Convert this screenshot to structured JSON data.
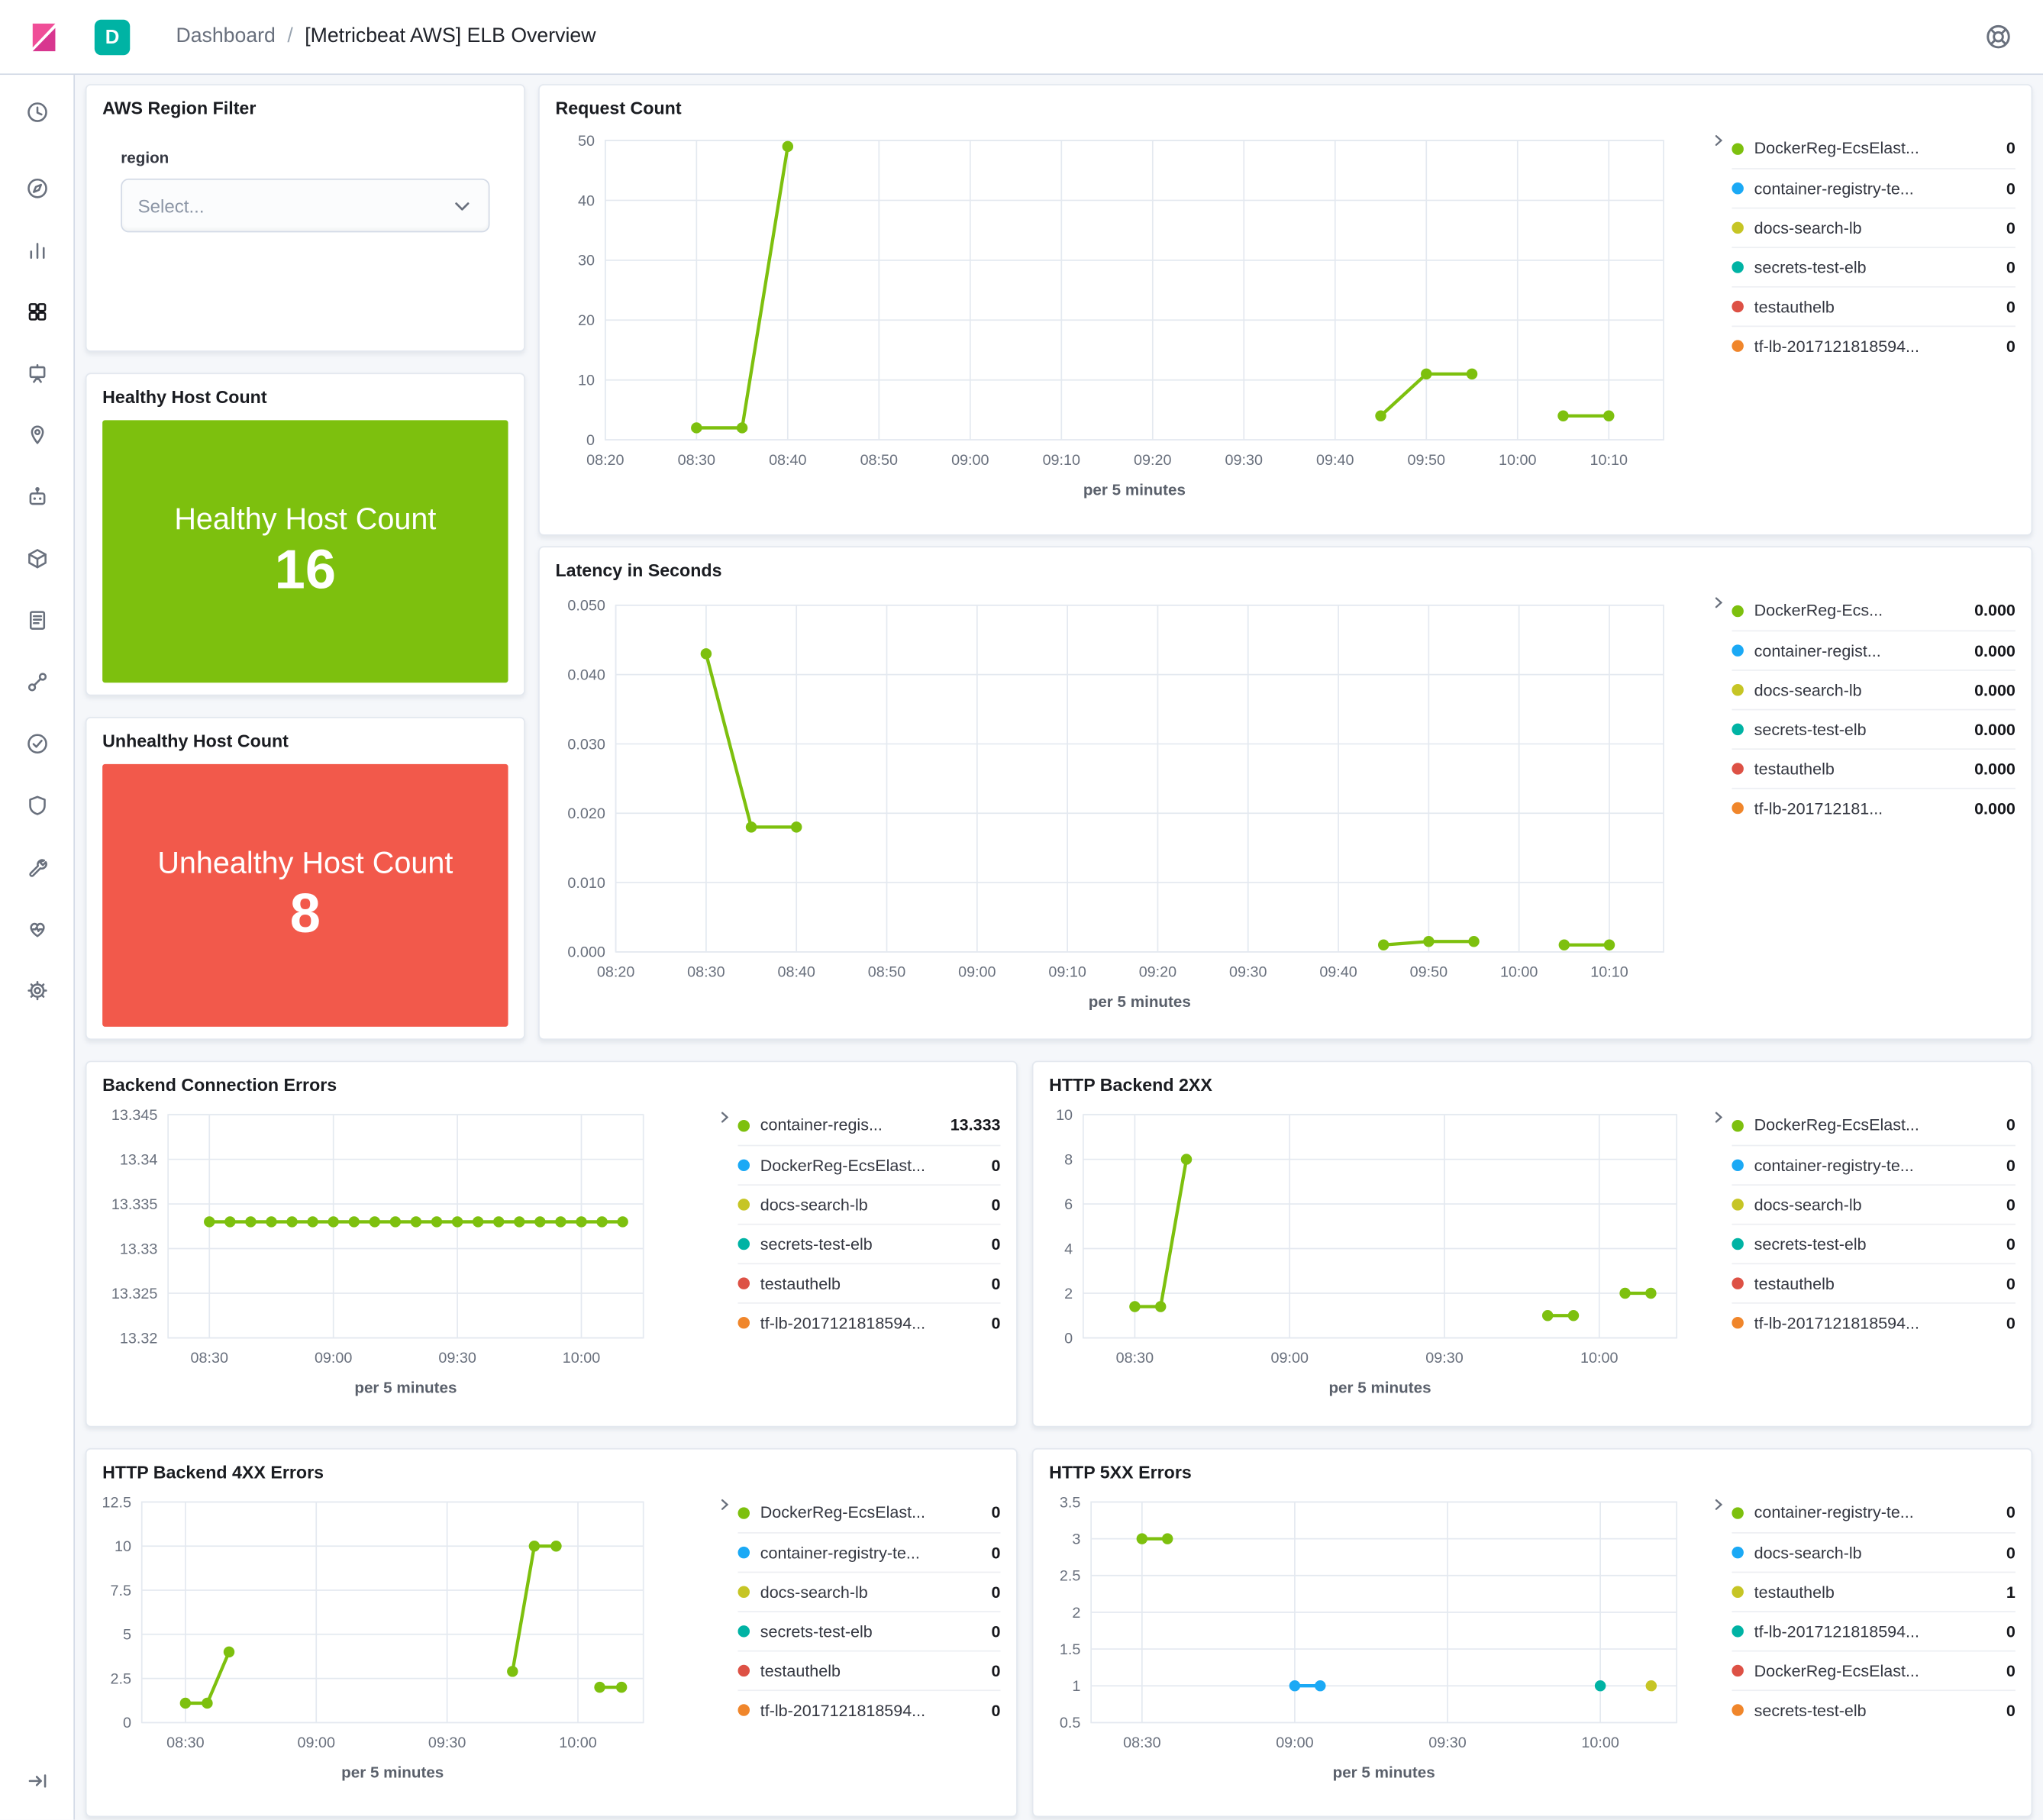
{
  "colors": {
    "green": "#7DC00E",
    "blue": "#1BA9F5",
    "yellow": "#C6C525",
    "teal": "#00B3A4",
    "red": "#DD5145",
    "orange": "#F0862B",
    "healthy_bg": "#7DC00E",
    "unhealthy_bg": "#F2594B",
    "badge_bg": "#00B3A4",
    "logo_pink": "#F04E98"
  },
  "header": {
    "app_badge": "D",
    "breadcrumb": {
      "root": "Dashboard",
      "separator": "/",
      "current": "[Metricbeat AWS] ELB Overview"
    }
  },
  "sidebar": {
    "icons": [
      "recently-viewed",
      "discover",
      "visualize",
      "dashboard",
      "canvas",
      "maps",
      "machine-learning",
      "infrastructure",
      "logs",
      "apm",
      "uptime",
      "siem",
      "dev-tools",
      "monitoring",
      "management",
      "collapse-nav"
    ],
    "active": "dashboard"
  },
  "filter_panel": {
    "title": "AWS Region Filter",
    "field_label": "region",
    "select_placeholder": "Select..."
  },
  "metrics": {
    "healthy": {
      "panel_title": "Healthy Host Count",
      "label": "Healthy Host Count",
      "value": "16"
    },
    "unhealthy": {
      "panel_title": "Unhealthy Host Count",
      "label": "Unhealthy Host Count",
      "value": "8"
    }
  },
  "chart_data": [
    {
      "title": "Request Count",
      "type": "line",
      "xlabel": "per 5 minutes",
      "x_range": [
        500,
        616
      ],
      "y_range": [
        0,
        50
      ],
      "x_ticks": [
        {
          "m": 500,
          "label": "08:20"
        },
        {
          "m": 510,
          "label": "08:30"
        },
        {
          "m": 520,
          "label": "08:40"
        },
        {
          "m": 530,
          "label": "08:50"
        },
        {
          "m": 540,
          "label": "09:00"
        },
        {
          "m": 550,
          "label": "09:10"
        },
        {
          "m": 560,
          "label": "09:20"
        },
        {
          "m": 570,
          "label": "09:30"
        },
        {
          "m": 580,
          "label": "09:40"
        },
        {
          "m": 590,
          "label": "09:50"
        },
        {
          "m": 600,
          "label": "10:00"
        },
        {
          "m": 610,
          "label": "10:10"
        }
      ],
      "y_ticks": [
        {
          "v": 0,
          "label": "0"
        },
        {
          "v": 10,
          "label": "10"
        },
        {
          "v": 20,
          "label": "20"
        },
        {
          "v": 30,
          "label": "30"
        },
        {
          "v": 40,
          "label": "40"
        },
        {
          "v": 50,
          "label": "50"
        }
      ],
      "series": [
        {
          "name": "request-count",
          "color": "#7DC00E",
          "segments": [
            [
              [
                510,
                2
              ],
              [
                515,
                2
              ],
              [
                520,
                49
              ]
            ],
            [
              [
                585,
                4
              ],
              [
                590,
                11
              ],
              [
                595,
                11
              ]
            ],
            [
              [
                605,
                4
              ],
              [
                610,
                4
              ]
            ]
          ]
        }
      ],
      "legend": [
        {
          "label": "DockerReg-EcsElast...",
          "value": "0",
          "color": "#7DC00E"
        },
        {
          "label": "container-registry-te...",
          "value": "0",
          "color": "#1BA9F5"
        },
        {
          "label": "docs-search-lb",
          "value": "0",
          "color": "#C6C525"
        },
        {
          "label": "secrets-test-elb",
          "value": "0",
          "color": "#00B3A4"
        },
        {
          "label": "testauthelb",
          "value": "0",
          "color": "#DD5145"
        },
        {
          "label": "tf-lb-2017121818594...",
          "value": "0",
          "color": "#F0862B"
        }
      ],
      "plot": {
        "ml": 38,
        "mt": 12,
        "pw": 806,
        "ph": 228,
        "mb": 56,
        "mr": 12
      }
    },
    {
      "title": "Latency in Seconds",
      "type": "line",
      "xlabel": "per 5 minutes",
      "x_range": [
        500,
        616
      ],
      "y_range": [
        0,
        0.05
      ],
      "x_ticks": [
        {
          "m": 500,
          "label": "08:20"
        },
        {
          "m": 510,
          "label": "08:30"
        },
        {
          "m": 520,
          "label": "08:40"
        },
        {
          "m": 530,
          "label": "08:50"
        },
        {
          "m": 540,
          "label": "09:00"
        },
        {
          "m": 550,
          "label": "09:10"
        },
        {
          "m": 560,
          "label": "09:20"
        },
        {
          "m": 570,
          "label": "09:30"
        },
        {
          "m": 580,
          "label": "09:40"
        },
        {
          "m": 590,
          "label": "09:50"
        },
        {
          "m": 600,
          "label": "10:00"
        },
        {
          "m": 610,
          "label": "10:10"
        }
      ],
      "y_ticks": [
        {
          "v": 0,
          "label": "0.000"
        },
        {
          "v": 0.01,
          "label": "0.010"
        },
        {
          "v": 0.02,
          "label": "0.020"
        },
        {
          "v": 0.03,
          "label": "0.030"
        },
        {
          "v": 0.04,
          "label": "0.040"
        },
        {
          "v": 0.05,
          "label": "0.050"
        }
      ],
      "series": [
        {
          "name": "latency",
          "color": "#7DC00E",
          "segments": [
            [
              [
                510,
                0.043
              ],
              [
                515,
                0.018
              ],
              [
                520,
                0.018
              ]
            ],
            [
              [
                585,
                0.001
              ],
              [
                590,
                0.0015
              ],
              [
                595,
                0.0015
              ]
            ],
            [
              [
                605,
                0.001
              ],
              [
                610,
                0.001
              ]
            ]
          ]
        }
      ],
      "legend": [
        {
          "label": "DockerReg-Ecs...",
          "value": "0.000",
          "color": "#7DC00E"
        },
        {
          "label": "container-regist...",
          "value": "0.000",
          "color": "#1BA9F5"
        },
        {
          "label": "docs-search-lb",
          "value": "0.000",
          "color": "#C6C525"
        },
        {
          "label": "secrets-test-elb",
          "value": "0.000",
          "color": "#00B3A4"
        },
        {
          "label": "testauthelb",
          "value": "0.000",
          "color": "#DD5145"
        },
        {
          "label": "tf-lb-201712181...",
          "value": "0.000",
          "color": "#F0862B"
        }
      ],
      "plot": {
        "ml": 46,
        "mt": 14,
        "pw": 798,
        "ph": 264,
        "mb": 56,
        "mr": 12
      }
    },
    {
      "title": "Backend Connection Errors",
      "type": "line",
      "xlabel": "per 5 minutes",
      "x_range": [
        500,
        615
      ],
      "y_range": [
        13.32,
        13.345
      ],
      "x_ticks": [
        {
          "m": 510,
          "label": "08:30"
        },
        {
          "m": 540,
          "label": "09:00"
        },
        {
          "m": 570,
          "label": "09:30"
        },
        {
          "m": 600,
          "label": "10:00"
        }
      ],
      "y_ticks": [
        {
          "v": 13.32,
          "label": "13.32"
        },
        {
          "v": 13.325,
          "label": "13.325"
        },
        {
          "v": 13.33,
          "label": "13.33"
        },
        {
          "v": 13.335,
          "label": "13.335"
        },
        {
          "v": 13.34,
          "label": "13.34"
        },
        {
          "v": 13.345,
          "label": "13.345"
        }
      ],
      "series": [
        {
          "name": "container-registry",
          "color": "#7DC00E",
          "segments": [
            [
              [
                510,
                13.333
              ],
              [
                515,
                13.333
              ],
              [
                520,
                13.333
              ],
              [
                525,
                13.333
              ],
              [
                530,
                13.333
              ],
              [
                535,
                13.333
              ],
              [
                540,
                13.333
              ],
              [
                545,
                13.333
              ],
              [
                550,
                13.333
              ],
              [
                555,
                13.333
              ],
              [
                560,
                13.333
              ],
              [
                565,
                13.333
              ],
              [
                570,
                13.333
              ],
              [
                575,
                13.333
              ],
              [
                580,
                13.333
              ],
              [
                585,
                13.333
              ],
              [
                590,
                13.333
              ],
              [
                595,
                13.333
              ],
              [
                600,
                13.333
              ],
              [
                605,
                13.333
              ],
              [
                610,
                13.333
              ]
            ]
          ]
        }
      ],
      "legend": [
        {
          "label": "container-regis...",
          "value": "13.333",
          "color": "#7DC00E"
        },
        {
          "label": "DockerReg-EcsElast...",
          "value": "0",
          "color": "#1BA9F5"
        },
        {
          "label": "docs-search-lb",
          "value": "0",
          "color": "#C6C525"
        },
        {
          "label": "secrets-test-elb",
          "value": "0",
          "color": "#00B3A4"
        },
        {
          "label": "testauthelb",
          "value": "0",
          "color": "#DD5145"
        },
        {
          "label": "tf-lb-2017121818594...",
          "value": "0",
          "color": "#F0862B"
        }
      ],
      "plot": {
        "ml": 50,
        "mt": 10,
        "pw": 362,
        "ph": 170,
        "mb": 54,
        "mr": 10
      }
    },
    {
      "title": "HTTP Backend 2XX",
      "type": "line",
      "xlabel": "per 5 minutes",
      "x_range": [
        500,
        615
      ],
      "y_range": [
        0,
        10
      ],
      "x_ticks": [
        {
          "m": 510,
          "label": "08:30"
        },
        {
          "m": 540,
          "label": "09:00"
        },
        {
          "m": 570,
          "label": "09:30"
        },
        {
          "m": 600,
          "label": "10:00"
        }
      ],
      "y_ticks": [
        {
          "v": 0,
          "label": "0"
        },
        {
          "v": 2,
          "label": "2"
        },
        {
          "v": 4,
          "label": "4"
        },
        {
          "v": 6,
          "label": "6"
        },
        {
          "v": 8,
          "label": "8"
        },
        {
          "v": 10,
          "label": "10"
        }
      ],
      "series": [
        {
          "name": "http-2xx",
          "color": "#7DC00E",
          "segments": [
            [
              [
                510,
                1.4
              ],
              [
                515,
                1.4
              ],
              [
                520,
                8
              ]
            ],
            [
              [
                590,
                1
              ],
              [
                595,
                1
              ]
            ],
            [
              [
                605,
                2
              ],
              [
                610,
                2
              ]
            ]
          ]
        }
      ],
      "legend": [
        {
          "label": "DockerReg-EcsElast...",
          "value": "0",
          "color": "#7DC00E"
        },
        {
          "label": "container-registry-te...",
          "value": "0",
          "color": "#1BA9F5"
        },
        {
          "label": "docs-search-lb",
          "value": "0",
          "color": "#C6C525"
        },
        {
          "label": "secrets-test-elb",
          "value": "0",
          "color": "#00B3A4"
        },
        {
          "label": "testauthelb",
          "value": "0",
          "color": "#DD5145"
        },
        {
          "label": "tf-lb-2017121818594...",
          "value": "0",
          "color": "#F0862B"
        }
      ],
      "plot": {
        "ml": 26,
        "mt": 10,
        "pw": 452,
        "ph": 170,
        "mb": 54,
        "mr": 10
      }
    },
    {
      "title": "HTTP Backend 4XX Errors",
      "type": "line",
      "xlabel": "per 5 minutes",
      "x_range": [
        500,
        615
      ],
      "y_range": [
        0,
        12.5
      ],
      "x_ticks": [
        {
          "m": 510,
          "label": "08:30"
        },
        {
          "m": 540,
          "label": "09:00"
        },
        {
          "m": 570,
          "label": "09:30"
        },
        {
          "m": 600,
          "label": "10:00"
        }
      ],
      "y_ticks": [
        {
          "v": 0,
          "label": "0"
        },
        {
          "v": 2.5,
          "label": "2.5"
        },
        {
          "v": 5,
          "label": "5"
        },
        {
          "v": 7.5,
          "label": "7.5"
        },
        {
          "v": 10,
          "label": "10"
        },
        {
          "v": 12.5,
          "label": "12.5"
        }
      ],
      "series": [
        {
          "name": "http-4xx",
          "color": "#7DC00E",
          "segments": [
            [
              [
                510,
                1.1
              ],
              [
                515,
                1.1
              ],
              [
                520,
                4
              ]
            ],
            [
              [
                585,
                2.9
              ],
              [
                590,
                10
              ],
              [
                595,
                10
              ]
            ],
            [
              [
                605,
                2
              ],
              [
                610,
                2
              ]
            ]
          ]
        }
      ],
      "legend": [
        {
          "label": "DockerReg-EcsElast...",
          "value": "0",
          "color": "#7DC00E"
        },
        {
          "label": "container-registry-te...",
          "value": "0",
          "color": "#1BA9F5"
        },
        {
          "label": "docs-search-lb",
          "value": "0",
          "color": "#C6C525"
        },
        {
          "label": "secrets-test-elb",
          "value": "0",
          "color": "#00B3A4"
        },
        {
          "label": "testauthelb",
          "value": "0",
          "color": "#DD5145"
        },
        {
          "label": "tf-lb-2017121818594...",
          "value": "0",
          "color": "#F0862B"
        }
      ],
      "plot": {
        "ml": 30,
        "mt": 10,
        "pw": 382,
        "ph": 168,
        "mb": 54,
        "mr": 10
      }
    },
    {
      "title": "HTTP 5XX Errors",
      "type": "line",
      "xlabel": "per 5 minutes",
      "x_range": [
        500,
        615
      ],
      "y_range": [
        0.5,
        3.5
      ],
      "x_ticks": [
        {
          "m": 510,
          "label": "08:30"
        },
        {
          "m": 540,
          "label": "09:00"
        },
        {
          "m": 570,
          "label": "09:30"
        },
        {
          "m": 600,
          "label": "10:00"
        }
      ],
      "y_ticks": [
        {
          "v": 0.5,
          "label": "0.5"
        },
        {
          "v": 1,
          "label": "1"
        },
        {
          "v": 1.5,
          "label": "1.5"
        },
        {
          "v": 2,
          "label": "2"
        },
        {
          "v": 2.5,
          "label": "2.5"
        },
        {
          "v": 3,
          "label": "3"
        },
        {
          "v": 3.5,
          "label": "3.5"
        }
      ],
      "series": [
        {
          "name": "container-registry-test",
          "color": "#7DC00E",
          "segments": [
            [
              [
                510,
                3
              ],
              [
                515,
                3
              ]
            ]
          ]
        },
        {
          "name": "docs-search-lb",
          "color": "#1BA9F5",
          "segments": [
            [
              [
                540,
                1
              ],
              [
                545,
                1
              ]
            ]
          ]
        },
        {
          "name": "tf-lb",
          "color": "#00B3A4",
          "segments": [
            [
              [
                600,
                1
              ]
            ]
          ]
        },
        {
          "name": "testauthelb",
          "color": "#C6C525",
          "segments": [
            [
              [
                610,
                1
              ]
            ]
          ]
        }
      ],
      "legend": [
        {
          "label": "container-registry-te...",
          "value": "0",
          "color": "#7DC00E"
        },
        {
          "label": "docs-search-lb",
          "value": "0",
          "color": "#1BA9F5"
        },
        {
          "label": "testauthelb",
          "value": "1",
          "color": "#C6C525"
        },
        {
          "label": "tf-lb-2017121818594...",
          "value": "0",
          "color": "#00B3A4"
        },
        {
          "label": "DockerReg-EcsElast...",
          "value": "0",
          "color": "#DD5145"
        },
        {
          "label": "secrets-test-elb",
          "value": "0",
          "color": "#F0862B"
        }
      ],
      "plot": {
        "ml": 32,
        "mt": 10,
        "pw": 446,
        "ph": 168,
        "mb": 54,
        "mr": 10
      }
    }
  ]
}
